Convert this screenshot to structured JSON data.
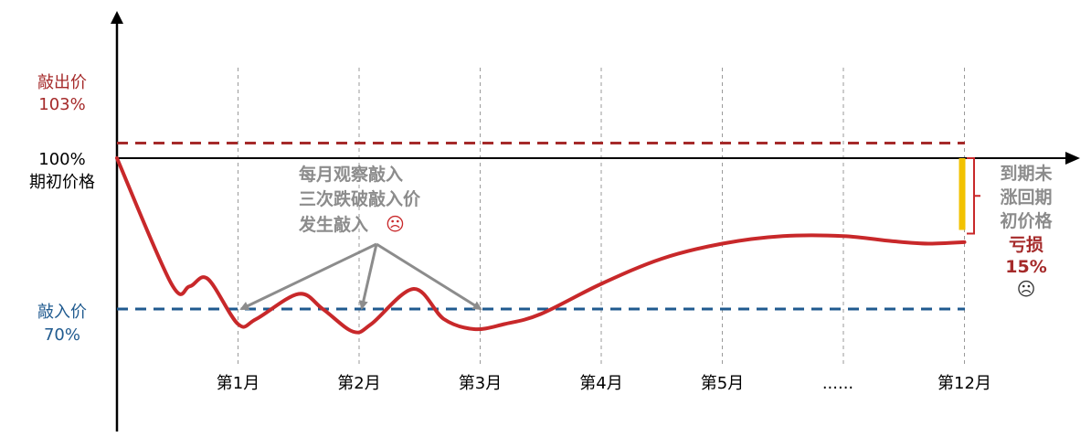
{
  "colors": {
    "knock_out": "#a52a2a",
    "knock_in": "#1f5a8f",
    "curve": "#c8282a",
    "annotation": "#8c8c8c",
    "loss_bar": "#f2c200",
    "axis": "#000000"
  },
  "chart_data": {
    "type": "line",
    "y_unit": "%",
    "levels": {
      "knock_out": {
        "name": "敲出价",
        "value": 103,
        "text": "103%"
      },
      "initial": {
        "name": "期初价格",
        "value": 100,
        "text": "100%"
      },
      "knock_in": {
        "name": "敲入价",
        "value": 70,
        "text": "70%"
      }
    },
    "x_ticks": [
      "第1月",
      "第2月",
      "第3月",
      "第4月",
      "第5月",
      "......",
      "第12月"
    ],
    "series": [
      {
        "points": [
          [
            0,
            100
          ],
          [
            0.45,
            75
          ],
          [
            0.6,
            74.5
          ],
          [
            0.75,
            76
          ],
          [
            1,
            67
          ],
          [
            1.15,
            68
          ],
          [
            1.5,
            73
          ],
          [
            1.7,
            70
          ],
          [
            1.95,
            65.5
          ],
          [
            2.1,
            67
          ],
          [
            2.45,
            74
          ],
          [
            2.7,
            68
          ],
          [
            2.95,
            66
          ],
          [
            3.2,
            67
          ],
          [
            3.5,
            69
          ],
          [
            4,
            75
          ],
          [
            4.5,
            80
          ],
          [
            5,
            83
          ],
          [
            5.5,
            84.5
          ],
          [
            6,
            84.5
          ],
          [
            6.4,
            83.5
          ],
          [
            6.7,
            83
          ],
          [
            7,
            83.3
          ]
        ],
        "end_value": 85
      }
    ]
  },
  "annotations": {
    "knock_in_note": [
      "每月观察敲入",
      "三次跌破敲入价",
      "发生敲入"
    ],
    "sad_icon": "☹",
    "end_note": [
      "到期未",
      "涨回期",
      "初价格"
    ],
    "loss_label": "亏损",
    "loss_value": "15%"
  }
}
